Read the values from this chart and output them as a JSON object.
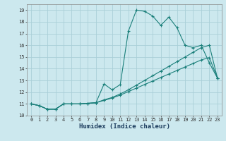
{
  "title": "",
  "xlabel": "Humidex (Indice chaleur)",
  "background_color": "#cce8ee",
  "grid_color": "#aacfd8",
  "line_color": "#1a7f7a",
  "xlim": [
    -0.5,
    23.5
  ],
  "ylim": [
    10,
    19.5
  ],
  "yticks": [
    10,
    11,
    12,
    13,
    14,
    15,
    16,
    17,
    18,
    19
  ],
  "xticks": [
    0,
    1,
    2,
    3,
    4,
    5,
    6,
    7,
    8,
    9,
    10,
    11,
    12,
    13,
    14,
    15,
    16,
    17,
    18,
    19,
    20,
    21,
    22,
    23
  ],
  "line1_x": [
    0,
    1,
    2,
    3,
    4,
    5,
    6,
    7,
    8,
    9,
    10,
    11,
    12,
    13,
    14,
    15,
    16,
    17,
    18,
    19,
    20,
    21,
    22,
    23
  ],
  "line1_y": [
    11.0,
    10.85,
    10.55,
    10.55,
    11.0,
    11.0,
    11.0,
    11.05,
    11.1,
    12.7,
    12.2,
    12.65,
    17.2,
    19.0,
    18.9,
    18.5,
    17.7,
    18.4,
    17.5,
    16.0,
    15.8,
    16.0,
    14.5,
    13.2
  ],
  "line2_x": [
    0,
    1,
    2,
    3,
    4,
    5,
    6,
    7,
    8,
    9,
    10,
    11,
    12,
    13,
    14,
    15,
    16,
    17,
    18,
    19,
    20,
    21,
    22,
    23
  ],
  "line2_y": [
    11.0,
    10.85,
    10.55,
    10.55,
    11.0,
    11.0,
    11.0,
    11.05,
    11.1,
    11.35,
    11.55,
    11.85,
    12.2,
    12.6,
    13.0,
    13.4,
    13.8,
    14.2,
    14.6,
    15.0,
    15.4,
    15.8,
    16.0,
    13.2
  ],
  "line3_x": [
    0,
    1,
    2,
    3,
    4,
    5,
    6,
    7,
    8,
    9,
    10,
    11,
    12,
    13,
    14,
    15,
    16,
    17,
    18,
    19,
    20,
    21,
    22,
    23
  ],
  "line3_y": [
    11.0,
    10.85,
    10.55,
    10.55,
    11.0,
    11.0,
    11.0,
    11.05,
    11.1,
    11.3,
    11.5,
    11.75,
    12.05,
    12.35,
    12.65,
    12.95,
    13.25,
    13.55,
    13.85,
    14.15,
    14.45,
    14.75,
    14.95,
    13.2
  ],
  "xlabel_color": "#1a3a5c",
  "tick_color": "#333333",
  "xlabel_fontsize": 6.5,
  "tick_fontsize": 5.0
}
